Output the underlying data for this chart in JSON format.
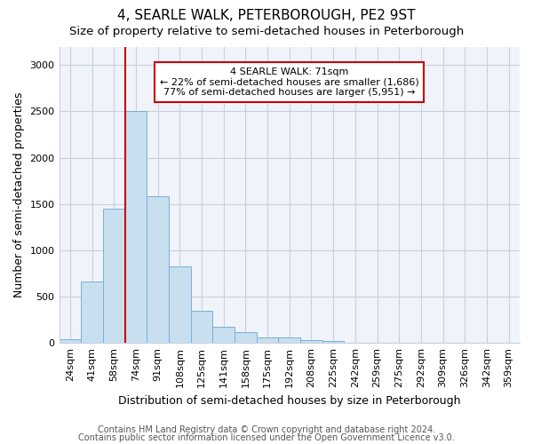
{
  "title": "4, SEARLE WALK, PETERBOROUGH, PE2 9ST",
  "subtitle": "Size of property relative to semi-detached houses in Peterborough",
  "xlabel": "Distribution of semi-detached houses by size in Peterborough",
  "ylabel": "Number of semi-detached properties",
  "categories": [
    "24sqm",
    "41sqm",
    "58sqm",
    "74sqm",
    "91sqm",
    "108sqm",
    "125sqm",
    "141sqm",
    "158sqm",
    "175sqm",
    "192sqm",
    "208sqm",
    "225sqm",
    "242sqm",
    "259sqm",
    "275sqm",
    "292sqm",
    "309sqm",
    "326sqm",
    "342sqm",
    "359sqm"
  ],
  "values": [
    40,
    660,
    1450,
    2500,
    1580,
    830,
    350,
    175,
    115,
    55,
    55,
    35,
    25,
    0,
    0,
    0,
    0,
    0,
    0,
    0,
    0
  ],
  "bar_color": "#c8dff0",
  "bar_edge_color": "#7aafd4",
  "red_line_bar_index": 3,
  "annotation_label": "4 SEARLE WALK: 71sqm",
  "annotation_smaller": "← 22% of semi-detached houses are smaller (1,686)",
  "annotation_larger": "77% of semi-detached houses are larger (5,951) →",
  "ylim": [
    0,
    3200
  ],
  "yticks": [
    0,
    500,
    1000,
    1500,
    2000,
    2500,
    3000
  ],
  "footer1": "Contains HM Land Registry data © Crown copyright and database right 2024.",
  "footer2": "Contains public sector information licensed under the Open Government Licence v3.0.",
  "background_color": "#ffffff",
  "plot_bg_color": "#f0f4fa",
  "grid_color": "#c8d0e0",
  "title_fontsize": 11,
  "subtitle_fontsize": 9.5,
  "tick_fontsize": 8,
  "ylabel_fontsize": 9,
  "xlabel_fontsize": 9,
  "annotation_box_color": "white",
  "annotation_box_edge": "#cc0000",
  "red_line_color": "#cc0000",
  "footer_fontsize": 7
}
